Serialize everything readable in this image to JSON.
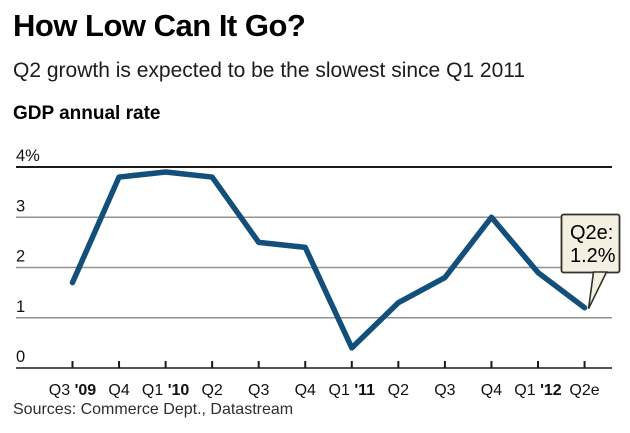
{
  "header": {
    "title": "How Low Can It Go?",
    "subtitle": "Q2 growth is expected to be the slowest since Q1 2011",
    "chart_label": "GDP annual rate"
  },
  "chart_data": {
    "type": "line",
    "title": "GDP annual rate",
    "categories": [
      "Q3 '09",
      "Q4",
      "Q1 '10",
      "Q2",
      "Q3",
      "Q4",
      "Q1 '11",
      "Q2",
      "Q3",
      "Q4",
      "Q1 '12",
      "Q2e"
    ],
    "values": [
      1.7,
      3.8,
      3.9,
      3.8,
      2.5,
      2.4,
      0.4,
      1.3,
      1.8,
      3.0,
      1.9,
      1.2
    ],
    "ylim": [
      0,
      4
    ],
    "y_ticks": [
      0,
      1,
      2,
      3,
      4
    ],
    "y_tick_labels": [
      "0",
      "1",
      "2",
      "3",
      "4%"
    ],
    "grid": true,
    "legend": "none",
    "line_color": "#124f7b",
    "grid_color": "#929292",
    "axis_color": "#1a1a1a",
    "annotation": {
      "target": "Q2e",
      "lines": [
        "Q2e:",
        "1.2%"
      ],
      "bg": "#f3efe1",
      "border": "#32312c"
    }
  },
  "footer": {
    "sources": "Sources: Commerce Dept., Datastream"
  }
}
